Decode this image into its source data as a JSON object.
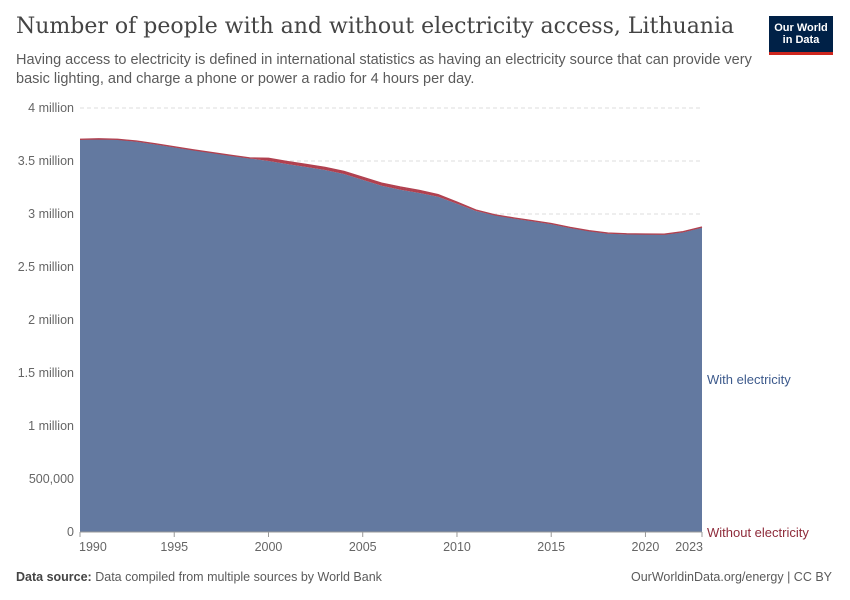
{
  "title": "Number of people with and without electricity access, Lithuania",
  "subtitle": "Having access to electricity is defined in international statistics as having an electricity source that can provide very basic lighting, and charge a phone or power a radio for 4 hours per day.",
  "logo": {
    "line1": "Our World",
    "line2": "in Data"
  },
  "footer": {
    "source_label": "Data source:",
    "source_text": "Data compiled from multiple sources by World Bank",
    "right_text": "OurWorldinData.org/energy | CC BY"
  },
  "colors": {
    "with": "#6379a0",
    "without": "#b0404f",
    "with_label": "#3d5a8c",
    "without_label": "#8e2b3a",
    "grid": "#dddddd",
    "tick": "#666666"
  },
  "chart_data": {
    "type": "area",
    "stacked": true,
    "x": [
      1990,
      1991,
      1992,
      1993,
      1994,
      1995,
      1996,
      1997,
      1998,
      1999,
      2000,
      2001,
      2002,
      2003,
      2004,
      2005,
      2006,
      2007,
      2008,
      2009,
      2010,
      2011,
      2012,
      2013,
      2014,
      2015,
      2016,
      2017,
      2018,
      2019,
      2020,
      2021,
      2022,
      2023
    ],
    "series": [
      {
        "name": "With electricity",
        "values": [
          3700000,
          3704000,
          3700000,
          3683000,
          3657000,
          3629000,
          3601000,
          3575000,
          3549000,
          3524000,
          3500000,
          3470000,
          3443000,
          3415000,
          3377000,
          3322000,
          3266000,
          3229000,
          3198000,
          3163000,
          3097000,
          3028000,
          2988000,
          2958000,
          2932000,
          2905000,
          2868000,
          2838000,
          2815000,
          2808000,
          2806000,
          2805000,
          2828000,
          2872000
        ]
      },
      {
        "name": "Without electricity",
        "values": [
          0,
          0,
          0,
          0,
          0,
          0,
          0,
          0,
          0,
          0,
          20000,
          20000,
          20000,
          20000,
          20000,
          20000,
          20000,
          20000,
          20000,
          15000,
          10000,
          5000,
          0,
          0,
          0,
          0,
          0,
          0,
          0,
          0,
          0,
          0,
          0,
          0
        ]
      }
    ],
    "xticks": [
      "1990",
      "1995",
      "2000",
      "2005",
      "2010",
      "2015",
      "2020",
      "2023"
    ],
    "yticks": [
      {
        "value": 0,
        "label": "0"
      },
      {
        "value": 500000,
        "label": "500,000"
      },
      {
        "value": 1000000,
        "label": "1 million"
      },
      {
        "value": 1500000,
        "label": "1.5 million"
      },
      {
        "value": 2000000,
        "label": "2 million"
      },
      {
        "value": 2500000,
        "label": "2.5 million"
      },
      {
        "value": 3000000,
        "label": "3 million"
      },
      {
        "value": 3500000,
        "label": "3.5 million"
      },
      {
        "value": 4000000,
        "label": "4 million"
      }
    ],
    "xlim": [
      1990,
      2023
    ],
    "ylim": [
      0,
      4000000
    ],
    "grid": true,
    "legend": "right-inline"
  }
}
